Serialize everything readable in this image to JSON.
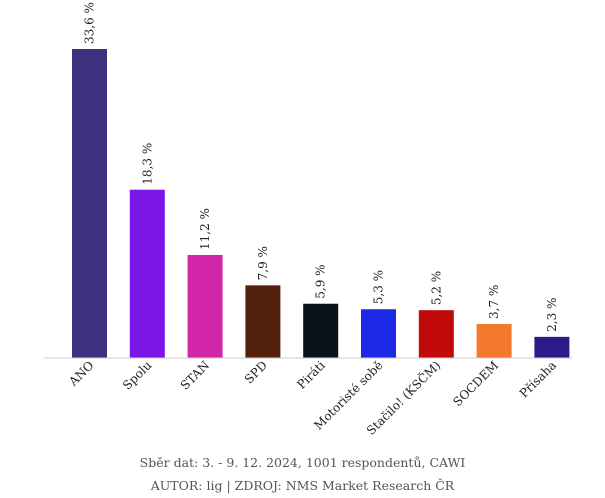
{
  "chart_data": {
    "type": "bar",
    "categories": [
      "ANO",
      "Spolu",
      "STAN",
      "SPD",
      "Piráti",
      "Motoristé sobě",
      "Stačilo! (KSČM)",
      "SOCDEM",
      "Přísaha"
    ],
    "values": [
      33.6,
      18.3,
      11.2,
      7.9,
      5.9,
      5.3,
      5.2,
      3.7,
      2.3
    ],
    "value_labels": [
      "33,6 %",
      "18,3 %",
      "11,2 %",
      "7,9 %",
      "5,9 %",
      "5,3 %",
      "5,2 %",
      "3,7 %",
      "2,3 %"
    ],
    "colors": [
      "#3f2f7f",
      "#7a16e6",
      "#d126a8",
      "#54210e",
      "#0b1219",
      "#1c29e6",
      "#c10b0b",
      "#f4782e",
      "#2a1a8a"
    ],
    "ylim": [
      0,
      33.6
    ],
    "grid": false,
    "legend": "none"
  },
  "footer": {
    "line1": "Sběr dat: 3. - 9. 12. 2024,  1001 respondentů, CAWI",
    "line2": "AUTOR: lig | ZDROJ: NMS Market Research ČR"
  }
}
